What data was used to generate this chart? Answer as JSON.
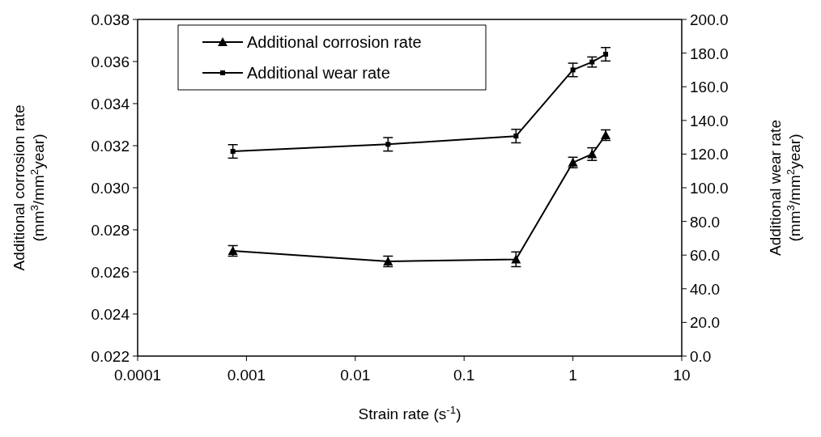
{
  "chart_data": {
    "type": "line",
    "xlabel": "Strain rate (s$^{-1}$)",
    "ylabel": "Additional corrosion rate (mm$^{3}$/mm$^{2}$year)",
    "y2label": "Additional wear rate (mm$^{3}$/mm$^{2}$year)",
    "log": "x",
    "x": [
      0.00075,
      0.02,
      0.3,
      1,
      1.5,
      2
    ],
    "xlim": [
      0.0001,
      10
    ],
    "xticks": [
      0.0001,
      0.001,
      0.01,
      0.1,
      1,
      10
    ],
    "ylim": [
      0.022,
      0.038
    ],
    "yticks": [
      0.022,
      0.024,
      0.026,
      0.028,
      {
        "value": 0.03,
        "label": "0.030"
      },
      0.032,
      0.034,
      0.036,
      0.038
    ],
    "y2lim": [
      0,
      200
    ],
    "y2ticks": [
      {
        "value": 0,
        "label": "0.0"
      },
      {
        "value": 20,
        "label": "20.0"
      },
      {
        "value": 40,
        "label": "40.0"
      },
      {
        "value": 60,
        "label": "60.0"
      },
      {
        "value": 80,
        "label": "80.0"
      },
      {
        "value": 100,
        "label": "100.0"
      },
      {
        "value": 120,
        "label": "120.0"
      },
      {
        "value": 140,
        "label": "140.0"
      },
      {
        "value": 160,
        "label": "160.0"
      },
      {
        "value": 180,
        "label": "180.0"
      },
      {
        "value": 200,
        "label": "200.0"
      }
    ],
    "legend": "top left",
    "grid": false,
    "series": [
      {
        "name": "Additional corrosion rate",
        "color": "#000000",
        "marker": "triangle",
        "values": [
          0.027,
          0.0265,
          0.0266,
          0.0312,
          0.0316,
          0.0325
        ],
        "errors": [
          0.00025,
          0.00025,
          0.00035,
          0.00025,
          0.0003,
          0.00025
        ]
      },
      {
        "name": "Additional wear rate",
        "color": "#000000",
        "marker": "square",
        "axis": "y2",
        "values": [
          121.6,
          125.8,
          130.7,
          170,
          174.7,
          179.3
        ],
        "errors": [
          4,
          4,
          4,
          4,
          3,
          4
        ]
      }
    ]
  }
}
